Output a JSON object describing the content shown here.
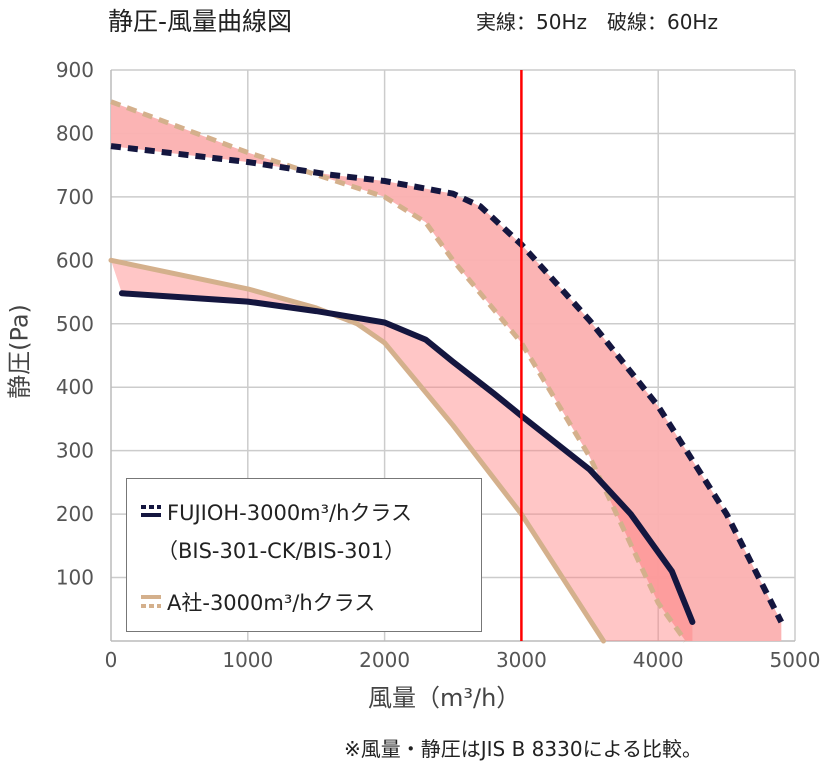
{
  "chart_data": {
    "type": "line",
    "title": "静圧-風量曲線図",
    "subtitle": "実線：50Hz　破線：60Hz",
    "xlabel": "風量（m³/h）",
    "ylabel": "静圧(Pa)",
    "xlim": [
      0,
      5000
    ],
    "ylim": [
      0,
      900
    ],
    "xticks": [
      "0",
      "1000",
      "2000",
      "3000",
      "4000",
      "5000"
    ],
    "yticks": [
      "100",
      "200",
      "300",
      "400",
      "500",
      "600",
      "700",
      "800",
      "900"
    ],
    "grid": true,
    "reference_line_x": 3000,
    "legend": {
      "placement": "bottom-left",
      "entries": [
        "FUJIOH-3000m³/hクラス",
        "（BIS-301-CK/BIS-301）",
        "A社-3000m³/hクラス"
      ]
    },
    "series": [
      {
        "name": "FUJIOH 50Hz",
        "color": "#14163f",
        "dashed": false,
        "x": [
          80,
          1000,
          1500,
          2000,
          2300,
          2500,
          2800,
          3000,
          3500,
          3800,
          4100,
          4250
        ],
        "y": [
          548,
          535,
          520,
          502,
          475,
          440,
          390,
          355,
          270,
          200,
          110,
          30
        ]
      },
      {
        "name": "FUJIOH 60Hz",
        "color": "#14163f",
        "dashed": true,
        "x": [
          0,
          1000,
          1600,
          2000,
          2500,
          2700,
          3000,
          3500,
          4000,
          4500,
          4900
        ],
        "y": [
          780,
          755,
          735,
          725,
          705,
          685,
          625,
          505,
          370,
          200,
          30
        ]
      },
      {
        "name": "A社 50Hz",
        "color": "#d4b08c",
        "dashed": false,
        "x": [
          0,
          1000,
          1500,
          1800,
          2000,
          2500,
          3000,
          3600
        ],
        "y": [
          600,
          555,
          525,
          500,
          470,
          340,
          200,
          0
        ]
      },
      {
        "name": "A社 60Hz",
        "color": "#d4b08c",
        "dashed": true,
        "x": [
          0,
          1000,
          1500,
          2000,
          2300,
          2500,
          3000,
          3500,
          4000,
          4200
        ],
        "y": [
          850,
          770,
          735,
          700,
          660,
          600,
          470,
          290,
          60,
          0
        ]
      }
    ],
    "fill_color": "#fbb0b0",
    "ref_line_color": "#ff0000"
  },
  "footnote": "※風量・静圧はJIS B 8330による比較。"
}
